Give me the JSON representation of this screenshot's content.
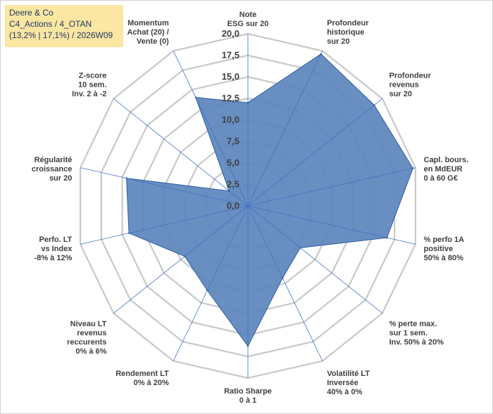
{
  "header": {
    "line1": "Deere & Co",
    "line2": "C4_Actions / 4_OTAN",
    "line3": "(13,2% | 17,1%) / 2026W09"
  },
  "colors": {
    "fill": "#5b84bd",
    "stroke": "#2e5e9e",
    "grid": "#c8c8c8",
    "spoke": "#4472c4",
    "title_bg": "#fbe6a2",
    "title_text": "#1f3864",
    "label": "#404040"
  },
  "chart_data": {
    "type": "radar",
    "title": "Deere & Co",
    "rlim": [
      0,
      20
    ],
    "ticks": [
      "0,0",
      "2,5",
      "5,0",
      "7,5",
      "10,0",
      "12,5",
      "15,0",
      "17,5",
      "20,0"
    ],
    "tick_values": [
      0,
      2.5,
      5,
      7.5,
      10,
      12.5,
      15,
      17.5,
      20
    ],
    "axes": [
      {
        "label": [
          "Note",
          "ESG sur 20"
        ],
        "value": 12
      },
      {
        "label": [
          "Profondeur",
          "historique",
          "sur 20"
        ],
        "value": 19.6
      },
      {
        "label": [
          "Profondeur",
          "revenus",
          "sur 20"
        ],
        "value": 18.8
      },
      {
        "label": [
          "Capl. bours.",
          "en MdEUR",
          "0 à 60 G€"
        ],
        "value": 19.7
      },
      {
        "label": [
          "% perfo 1A",
          "positive",
          "50% à 80%"
        ],
        "value": 16.6
      },
      {
        "label": [
          "% perte max.",
          "sur 1 sem.",
          "Inv. 50% à 20%"
        ],
        "value": 7.8
      },
      {
        "label": [
          "Volatilité LT",
          "Inversée",
          "40% à 0%"
        ],
        "value": 9.3
      },
      {
        "label": [
          "Ratio Sharpe",
          "0 à 1"
        ],
        "value": 16.3
      },
      {
        "label": [
          "Rendement LT",
          "0% à 20%"
        ],
        "value": 10.9
      },
      {
        "label": [
          "Niveau LT",
          "revenus",
          "reccurents",
          "0% à 6%"
        ],
        "value": 9.4
      },
      {
        "label": [
          "Perfo. LT",
          "vs Index",
          "-8% à 12%"
        ],
        "value": 14.2
      },
      {
        "label": [
          "Régularité",
          "croissance",
          "sur 20"
        ],
        "value": 14.5
      },
      {
        "label": [
          "Z-score",
          "10 sem.",
          "Inv. 2 à -2"
        ],
        "value": 2.8
      },
      {
        "label": [
          "Momentum",
          "Achat (20) /",
          "Vente (0)"
        ],
        "value": 14.0
      }
    ]
  }
}
